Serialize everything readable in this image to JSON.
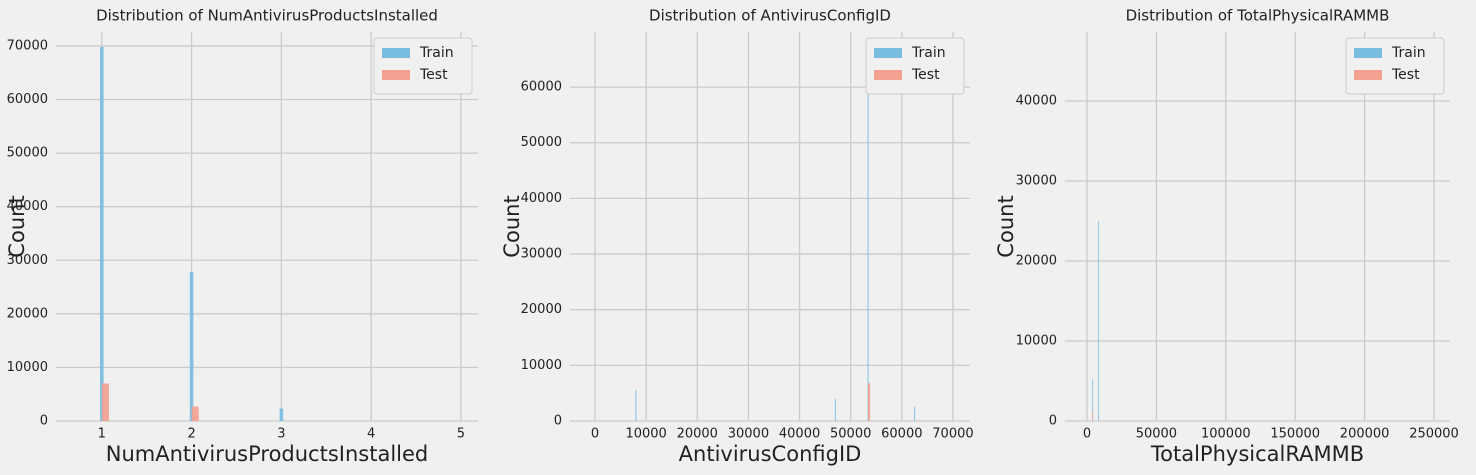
{
  "chart_data": [
    {
      "type": "histogram",
      "title": "Distribution of NumAntivirusProductsInstalled",
      "xlabel": "NumAntivirusProductsInstalled",
      "ylabel": "Count",
      "xlim": [
        0.49,
        5.19
      ],
      "xticks": [
        1,
        2,
        3,
        4,
        5
      ],
      "ylim": [
        0,
        72600
      ],
      "yticks": [
        0,
        10000,
        20000,
        30000,
        40000,
        50000,
        60000,
        70000
      ],
      "grid": true,
      "legend": "upper right",
      "series": [
        {
          "name": "Train",
          "color": "#77bde0",
          "bins": [
            0.98,
            1.02,
            1.98,
            2.02,
            2.98,
            3.02
          ],
          "values": [
            69800,
            0,
            27800,
            0,
            2300
          ]
        },
        {
          "name": "Test",
          "color": "#f4a090",
          "bins": [
            1.0,
            1.08,
            2.0,
            2.08
          ],
          "values": [
            7000,
            0,
            2700
          ]
        }
      ]
    },
    {
      "type": "histogram",
      "title": "Distribution of AntivirusConfigID",
      "xlabel": "AntivirusConfigID",
      "ylabel": "Count",
      "xlim": [
        -4890,
        73330
      ],
      "xticks": [
        0,
        10000,
        20000,
        30000,
        40000,
        50000,
        60000,
        70000
      ],
      "ylim": [
        0,
        69900
      ],
      "yticks": [
        0,
        10000,
        20000,
        30000,
        40000,
        50000,
        60000
      ],
      "grid": true,
      "legend": "upper right",
      "series": [
        {
          "name": "Train",
          "color": "#77bde0",
          "bins": [
            7900,
            8100,
            46900,
            47100,
            53300,
            53500,
            62400,
            62600
          ],
          "values": [
            5500,
            0,
            4000,
            0,
            67000,
            0,
            2600
          ]
        },
        {
          "name": "Test",
          "color": "#f4a090",
          "bins": [
            53400,
            53800
          ],
          "values": [
            6800
          ]
        }
      ]
    },
    {
      "type": "histogram",
      "title": "Distribution of TotalPhysicalRAMMB",
      "xlabel": "TotalPhysicalRAMMB",
      "ylabel": "Count",
      "xlim": [
        -15850,
        261500
      ],
      "xticks": [
        0,
        50000,
        100000,
        150000,
        200000,
        250000
      ],
      "ylim": [
        0,
        48625
      ],
      "yticks": [
        0,
        10000,
        20000,
        30000,
        40000
      ],
      "grid": true,
      "legend": "upper right",
      "series": [
        {
          "name": "Train",
          "color": "#77bde0",
          "bins": [
            3800,
            4300,
            7900,
            8500
          ],
          "values": [
            5200,
            0,
            25000
          ]
        },
        {
          "name": "Test",
          "color": "#f4a090",
          "bins": [
            3800,
            4300
          ],
          "values": [
            1300
          ]
        }
      ]
    }
  ]
}
